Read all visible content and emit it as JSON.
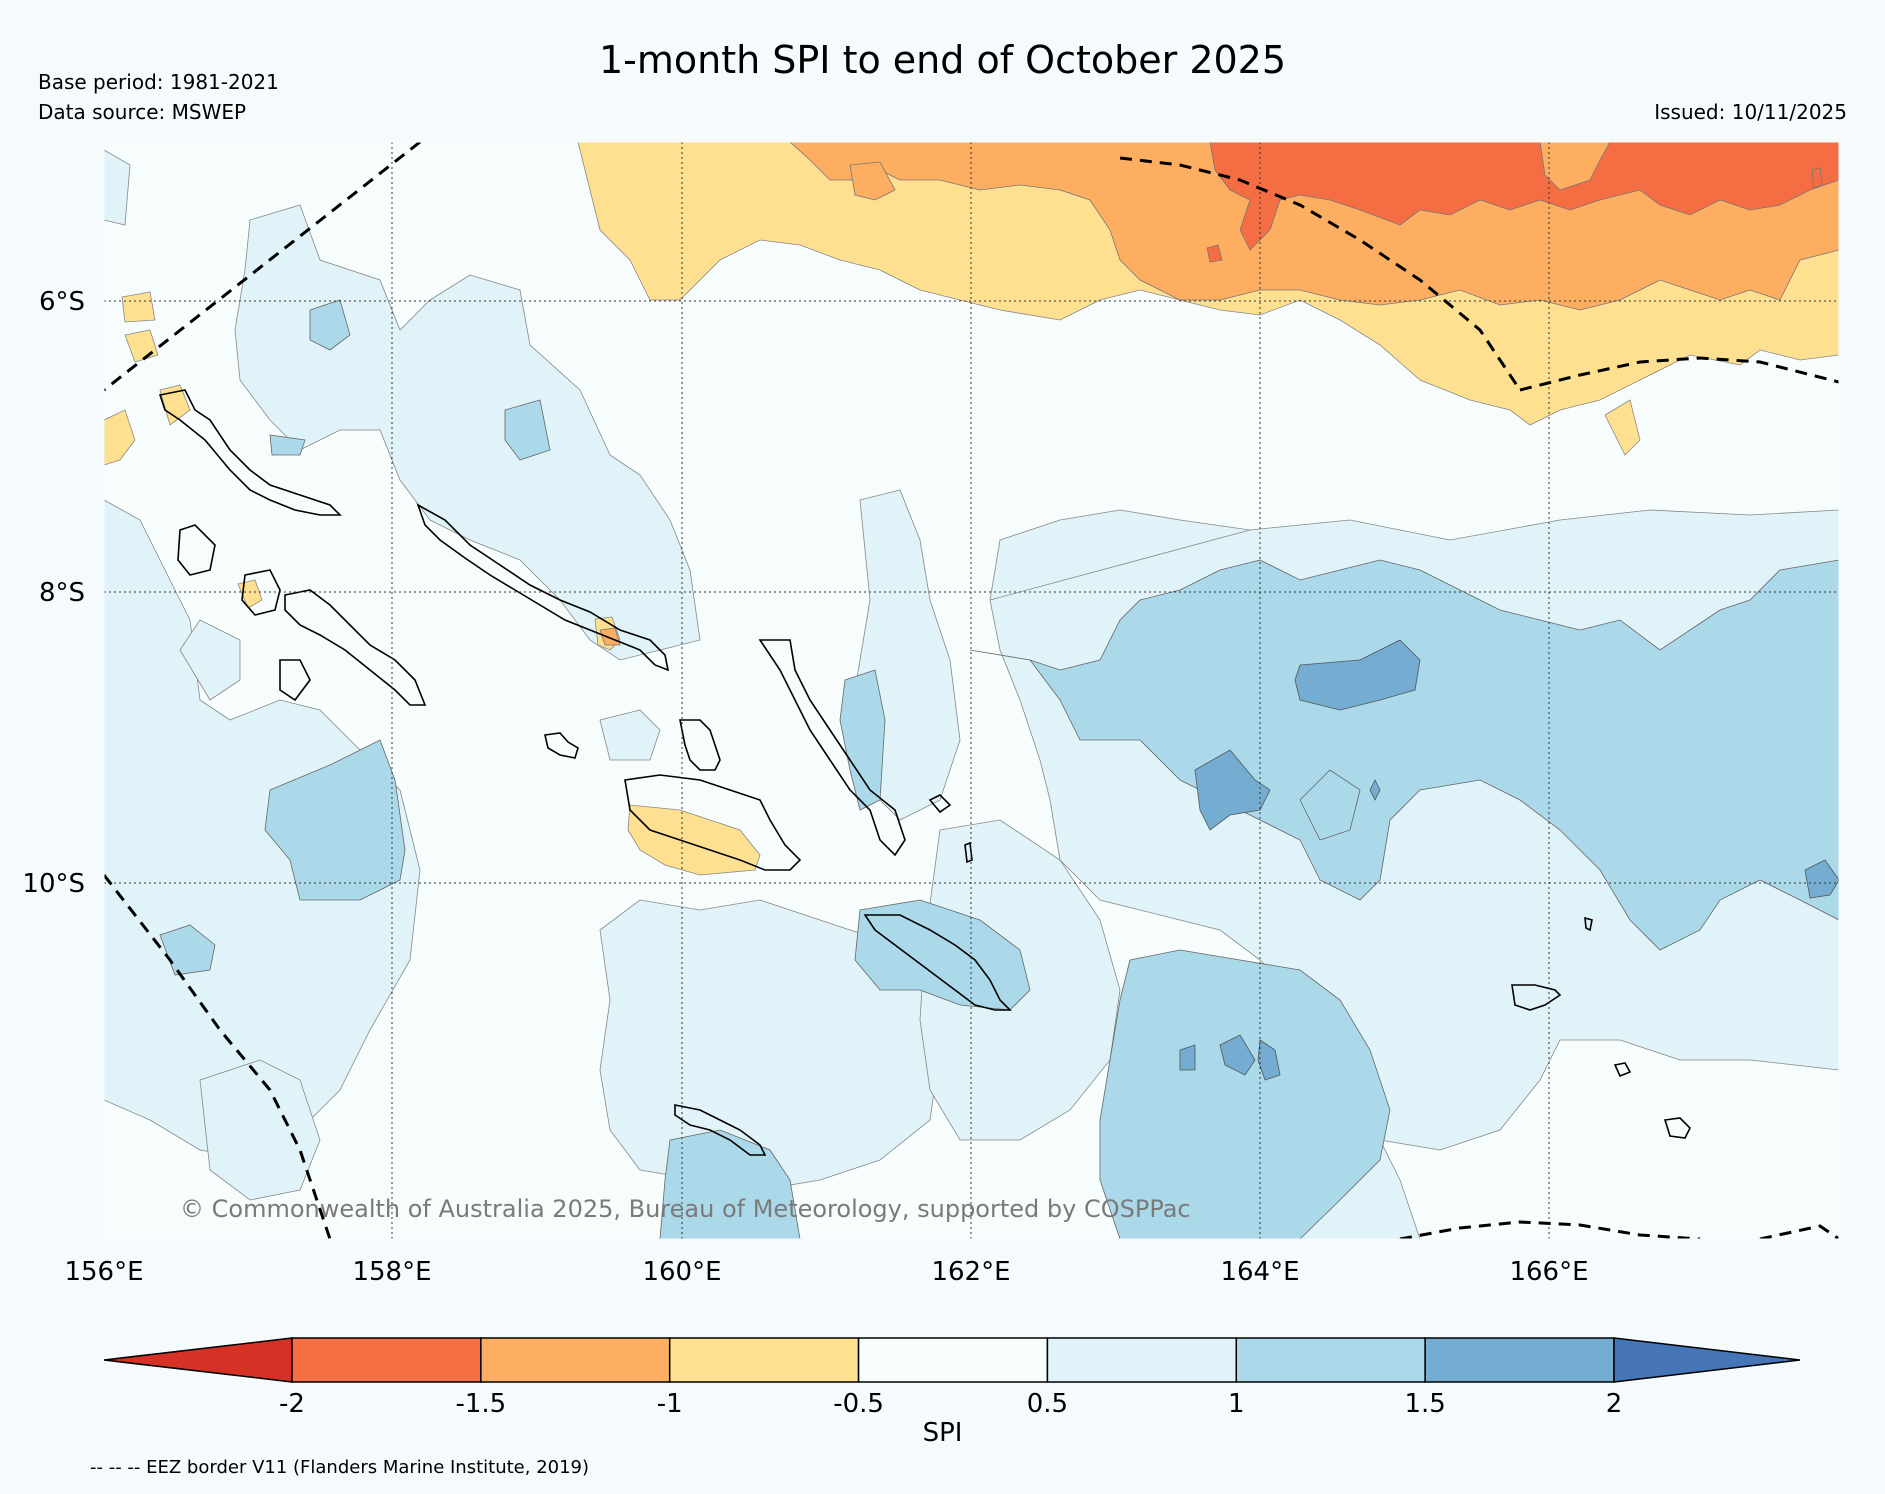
{
  "header": {
    "title": "1-month SPI to end of October 2025",
    "base_period": "Base period: 1981-2021",
    "data_source": "Data source: MSWEP",
    "issued": "Issued: 10/11/2025"
  },
  "map": {
    "lat_labels": [
      "6°S",
      "8°S",
      "10°S"
    ],
    "lon_labels": [
      "156°E",
      "158°E",
      "160°E",
      "162°E",
      "164°E",
      "166°E"
    ],
    "copyright": "© Commonwealth of Australia 2025, Bureau of Meteorology, supported by COSPPac"
  },
  "colorbar": {
    "label": "SPI",
    "ticks": [
      "-2",
      "-1.5",
      "-1",
      "-0.5",
      "0.5",
      "1",
      "1.5",
      "2"
    ],
    "colors": {
      "below_min": "#d73027",
      "bins": [
        "#f46d43",
        "#fdae61",
        "#fee090",
        "#f7fcfd",
        "#e0f3f8",
        "#abd9e9",
        "#74add1"
      ],
      "above_max": "#4575b4"
    }
  },
  "footer": {
    "eez_legend": "-- -- -- EEZ border V11 (Flanders Marine Institute, 2019)"
  }
}
